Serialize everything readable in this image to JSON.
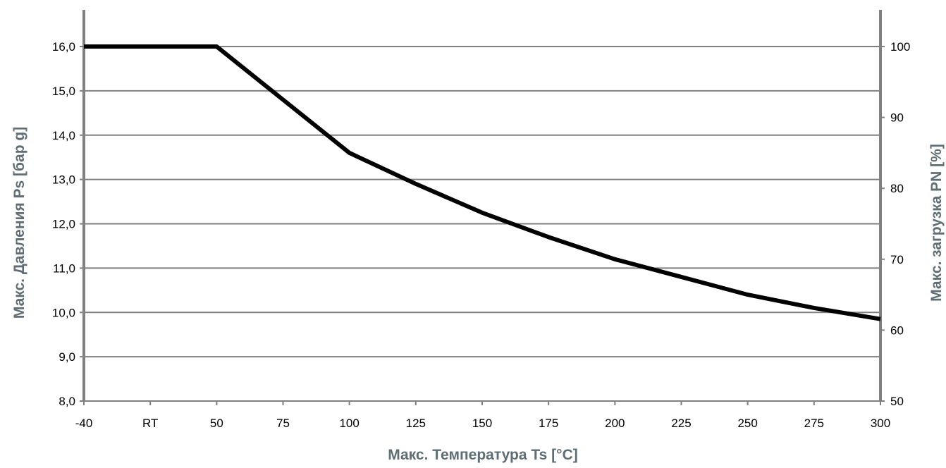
{
  "chart_data": {
    "type": "line",
    "title": "",
    "xlabel": "Макс. Температура Ts [°C]",
    "ylabel": "Макс. Давления Ps [бар g]",
    "y2label": "Макс. загрузка PN [%]",
    "categories": [
      "-40",
      "RT",
      "50",
      "75",
      "100",
      "125",
      "150",
      "175",
      "200",
      "225",
      "250",
      "275",
      "300"
    ],
    "y_ticks": [
      "8,0",
      "9,0",
      "10,0",
      "11,0",
      "12,0",
      "13,0",
      "14,0",
      "15,0",
      "16,0"
    ],
    "y2_ticks": [
      "50",
      "60",
      "70",
      "80",
      "90",
      "100"
    ],
    "ylim": [
      8,
      17
    ],
    "y2lim": [
      50,
      100
    ],
    "grid": true,
    "series": [
      {
        "color": "#000000",
        "values": [
          16.0,
          16.0,
          16.0,
          14.8,
          13.6,
          12.9,
          12.25,
          11.7,
          11.2,
          10.8,
          10.4,
          10.1,
          9.85
        ]
      }
    ]
  },
  "colors": {
    "axis": "#808080",
    "grid": "#808080",
    "line": "#000000",
    "axis_title": "#5f6d74"
  }
}
